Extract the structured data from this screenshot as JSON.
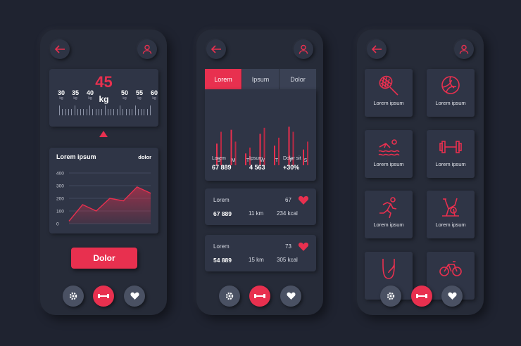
{
  "phone1": {
    "weight_value": "45",
    "weight_unit": "kg",
    "scale": [
      {
        "num": "30",
        "unit": "kg"
      },
      {
        "num": "35",
        "unit": "kg"
      },
      {
        "num": "40",
        "unit": "kg"
      },
      {
        "num": "50",
        "unit": "kg"
      },
      {
        "num": "55",
        "unit": "kg"
      },
      {
        "num": "60",
        "unit": "kg"
      }
    ],
    "chart_title": "Lorem ipsum",
    "chart_link": "dolor",
    "button_label": "Dolor"
  },
  "chart_data": {
    "type": "area",
    "title": "Lorem ipsum",
    "x": [
      0,
      1,
      2,
      3,
      4,
      5,
      6
    ],
    "values": [
      20,
      150,
      100,
      200,
      180,
      290,
      240
    ],
    "y_ticks": [
      "400",
      "300",
      "200",
      "100",
      "0"
    ],
    "ylim": [
      0,
      400
    ],
    "grid": true,
    "color": "#e8304f"
  },
  "phone2": {
    "tabs": [
      "Lorem",
      "Ipsum",
      "Dolor"
    ],
    "bar_days": [
      "S",
      "M",
      "T",
      "W",
      "T",
      "F",
      "S"
    ],
    "bar_pairs": [
      [
        0.55,
        0.85
      ],
      [
        0.9,
        0.6
      ],
      [
        0.3,
        0.45
      ],
      [
        0.8,
        0.95
      ],
      [
        0.5,
        0.7
      ],
      [
        0.98,
        0.85
      ],
      [
        0.4,
        0.6
      ]
    ],
    "summary": [
      {
        "label": "Lorem",
        "value": "67 889"
      },
      {
        "label": "Ipsum",
        "value": "4 563"
      },
      {
        "label": "Dolor sit",
        "value": "+30%"
      }
    ],
    "cards": [
      {
        "title": "Lorem",
        "count": "67",
        "a": "67 889",
        "b": "11 km",
        "c": "234 kcal"
      },
      {
        "title": "Lorem",
        "count": "73",
        "a": "54 889",
        "b": "15 km",
        "c": "305 kcal"
      }
    ]
  },
  "phone3": {
    "tiles": [
      {
        "label": "Lorem ipsum",
        "icon": "tennis-racket-icon"
      },
      {
        "label": "Lorem ipsum",
        "icon": "volleyball-icon"
      },
      {
        "label": "Lorem ipsum",
        "icon": "swimmer-icon"
      },
      {
        "label": "Lorem ipsum",
        "icon": "dumbbell-icon"
      },
      {
        "label": "Lorem ipsum",
        "icon": "runner-icon"
      },
      {
        "label": "Lorem ipsum",
        "icon": "exercise-bike-icon"
      },
      {
        "label": "",
        "icon": "jump-rope-icon"
      },
      {
        "label": "",
        "icon": "bicycle-icon"
      }
    ]
  },
  "colors": {
    "accent": "#e8304f",
    "background": "#1f2330",
    "card": "#2f3546"
  }
}
